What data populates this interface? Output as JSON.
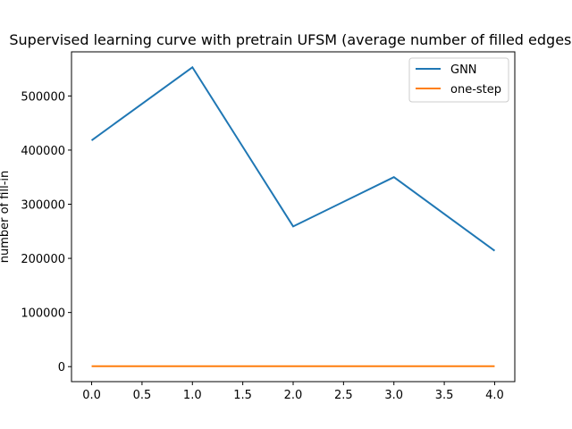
{
  "chart_data": {
    "type": "line",
    "title": "Supervised learning curve with pretrain UFSM (average number of filled edges)",
    "xlabel": "",
    "ylabel": "number of fill-in",
    "x": [
      0,
      1,
      2,
      3,
      4
    ],
    "xlim": [
      -0.2,
      4.2
    ],
    "ylim": [
      -27700,
      581500
    ],
    "x_ticks": [
      0.0,
      0.5,
      1.0,
      1.5,
      2.0,
      2.5,
      3.0,
      3.5,
      4.0
    ],
    "x_tick_labels": [
      "0.0",
      "0.5",
      "1.0",
      "1.5",
      "2.0",
      "2.5",
      "3.0",
      "3.5",
      "4.0"
    ],
    "y_ticks": [
      0,
      100000,
      200000,
      300000,
      400000,
      500000
    ],
    "y_tick_labels": [
      "0",
      "100000",
      "200000",
      "300000",
      "400000",
      "500000"
    ],
    "series": [
      {
        "name": "GNN",
        "values": [
          418000,
          553000,
          259000,
          350000,
          214000
        ],
        "color": "#1f77b4"
      },
      {
        "name": "one-step",
        "values": [
          800,
          800,
          800,
          800,
          800
        ],
        "color": "#ff7f0e"
      }
    ],
    "legend": {
      "position": "upper-right"
    },
    "grid": false
  }
}
